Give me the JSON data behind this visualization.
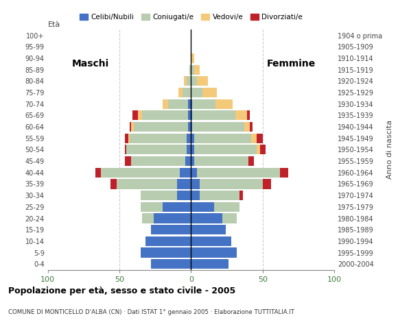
{
  "age_groups": [
    "0-4",
    "5-9",
    "10-14",
    "15-19",
    "20-24",
    "25-29",
    "30-34",
    "35-39",
    "40-44",
    "45-49",
    "50-54",
    "55-59",
    "60-64",
    "65-69",
    "70-74",
    "75-79",
    "80-84",
    "85-89",
    "90-94",
    "95-99",
    "100+"
  ],
  "birth_years": [
    "2000-2004",
    "1995-1999",
    "1990-1994",
    "1985-1989",
    "1980-1984",
    "1975-1979",
    "1970-1974",
    "1965-1969",
    "1960-1964",
    "1955-1959",
    "1950-1954",
    "1945-1949",
    "1940-1944",
    "1935-1939",
    "1930-1934",
    "1925-1929",
    "1920-1924",
    "1915-1919",
    "1910-1914",
    "1905-1909",
    "1904 o prima"
  ],
  "males": {
    "celibi": [
      28,
      35,
      32,
      28,
      26,
      20,
      10,
      10,
      8,
      4,
      3,
      3,
      2,
      2,
      2,
      0,
      0,
      0,
      0,
      0,
      0
    ],
    "coniugati": [
      0,
      0,
      0,
      0,
      8,
      15,
      25,
      42,
      55,
      38,
      42,
      40,
      38,
      32,
      14,
      6,
      3,
      1,
      0,
      0,
      0
    ],
    "vedovi": [
      0,
      0,
      0,
      0,
      0,
      0,
      0,
      0,
      0,
      0,
      0,
      1,
      2,
      3,
      4,
      3,
      2,
      0,
      0,
      0,
      0
    ],
    "divorziati": [
      0,
      0,
      0,
      0,
      0,
      0,
      0,
      4,
      4,
      4,
      1,
      2,
      1,
      4,
      0,
      0,
      0,
      0,
      0,
      0,
      0
    ]
  },
  "females": {
    "nubili": [
      26,
      32,
      28,
      24,
      22,
      16,
      6,
      6,
      4,
      2,
      2,
      2,
      1,
      1,
      1,
      0,
      0,
      0,
      0,
      0,
      0
    ],
    "coniugate": [
      0,
      0,
      0,
      0,
      10,
      18,
      28,
      44,
      58,
      38,
      44,
      40,
      36,
      30,
      16,
      8,
      4,
      2,
      0,
      0,
      0
    ],
    "vedove": [
      0,
      0,
      0,
      0,
      0,
      0,
      0,
      0,
      0,
      0,
      2,
      4,
      4,
      8,
      12,
      10,
      8,
      4,
      2,
      0,
      0
    ],
    "divorziate": [
      0,
      0,
      0,
      0,
      0,
      0,
      2,
      6,
      6,
      4,
      4,
      4,
      2,
      2,
      0,
      0,
      0,
      0,
      0,
      0,
      0
    ]
  },
  "color_celibi": "#4472C4",
  "color_coniugati": "#B8CCB0",
  "color_vedovi": "#F5C97A",
  "color_divorziati": "#C0202A",
  "xlim": 100,
  "title": "Popolazione per età, sesso e stato civile - 2005",
  "subtitle": "COMUNE DI MONTICELLO D'ALBA (CN) · Dati ISTAT 1° gennaio 2005 · Elaborazione TUTTITALIA.IT",
  "ylabel_left": "Età",
  "ylabel_right": "Anno di nascita",
  "label_maschi": "Maschi",
  "label_femmine": "Femmine"
}
